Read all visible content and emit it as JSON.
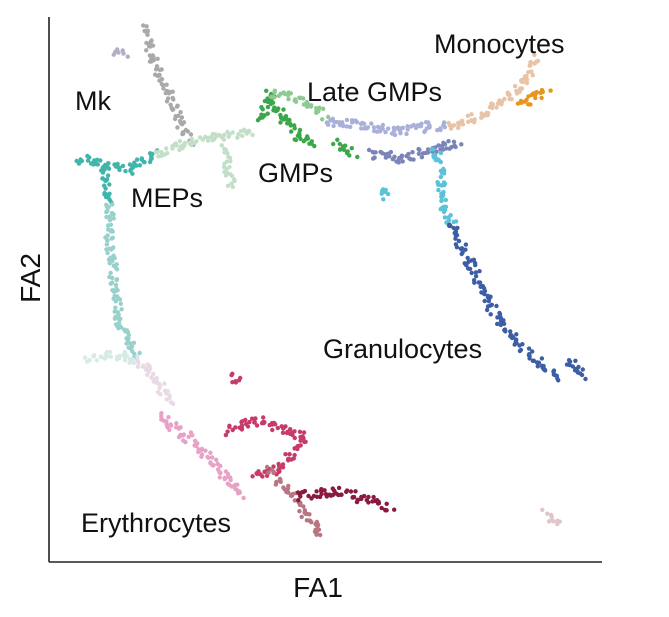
{
  "chart_data": {
    "type": "scatter",
    "title": "",
    "xlabel": "FA1",
    "ylabel": "FA2",
    "xlim": [
      0,
      100
    ],
    "ylim": [
      0,
      100
    ],
    "grid": false,
    "ticks": false,
    "legend": "none (clusters labeled directly on plot)",
    "point_style": "small filled dots, cells colored by cluster",
    "clusters": [
      {
        "label": "Mk",
        "color": "#b3aec8",
        "segments": [
          [
            [
              12,
              93.5
            ],
            [
              14,
              93.4
            ]
          ]
        ]
      },
      {
        "label": "MEPs",
        "color": "#41b5aa",
        "segments": [
          [
            [
              5,
              74
            ],
            [
              10,
              73
            ],
            [
              15,
              72
            ],
            [
              19.5,
              75
            ]
          ],
          [
            [
              10,
              73
            ],
            [
              11,
              66
            ]
          ]
        ]
      },
      {
        "label": "",
        "color": "#a9a9a9",
        "segments": [
          [
            [
              17,
              98
            ],
            [
              19,
              92
            ],
            [
              22,
              85
            ],
            [
              24,
              80
            ],
            [
              26,
              77
            ]
          ]
        ]
      },
      {
        "label": "",
        "color": "#c4dfc8",
        "segments": [
          [
            [
              19.5,
              75
            ],
            [
              24,
              76.5
            ],
            [
              30,
              78
            ],
            [
              37,
              79
            ]
          ],
          [
            [
              32,
              76
            ],
            [
              33,
              69
            ]
          ]
        ]
      },
      {
        "label": "GMPs",
        "color": "#3ca64a",
        "segments": [
          [
            [
              38,
              81
            ],
            [
              40,
              86
            ],
            [
              42,
              82
            ],
            [
              45,
              78
            ],
            [
              48,
              77
            ]
          ],
          [
            [
              52,
              77
            ],
            [
              55,
              75
            ]
          ]
        ]
      },
      {
        "label": "",
        "color": "#8fc993",
        "segments": [
          [
            [
              40,
              86
            ],
            [
              45,
              85
            ],
            [
              50,
              82
            ]
          ]
        ]
      },
      {
        "label": "Late GMPs",
        "color": "#a9b0d9",
        "segments": [
          [
            [
              50,
              81
            ],
            [
              57,
              80
            ],
            [
              63,
              79
            ],
            [
              69,
              80
            ],
            [
              72,
              80
            ]
          ]
        ]
      },
      {
        "label": "",
        "color": "#7a84b9",
        "segments": [
          [
            [
              58,
              75
            ],
            [
              64,
              74
            ],
            [
              70,
              76
            ],
            [
              74,
              77
            ]
          ]
        ]
      },
      {
        "label": "",
        "color": "#5bc2d8",
        "segments": [
          [
            [
              70,
              76
            ],
            [
              71,
              70
            ],
            [
              71,
              65
            ],
            [
              73,
              62
            ]
          ],
          [
            [
              60,
              68
            ],
            [
              61,
              67
            ]
          ]
        ]
      },
      {
        "label": "Granulocytes",
        "color": "#3d5ea5",
        "segments": [
          [
            [
              73,
              62
            ],
            [
              76,
              55
            ],
            [
              80,
              47
            ],
            [
              84,
              41
            ],
            [
              89,
              36
            ],
            [
              92,
              34
            ]
          ],
          [
            [
              94,
              37
            ],
            [
              97,
              34
            ]
          ]
        ]
      },
      {
        "label": "",
        "color": "#e8c3a6",
        "segments": [
          [
            [
              72,
              80
            ],
            [
              78,
              82
            ],
            [
              84,
              86
            ],
            [
              86,
              88
            ],
            [
              88,
              93
            ]
          ]
        ]
      },
      {
        "label": "Monocytes",
        "color": "#e6961e",
        "segments": [
          [
            [
              85,
              84
            ],
            [
              87,
              85
            ],
            [
              90,
              86
            ]
          ]
        ]
      },
      {
        "label": "",
        "color": "#98d1cc",
        "segments": [
          [
            [
              11,
              66
            ],
            [
              11,
              58
            ],
            [
              12,
              50
            ],
            [
              13,
              43
            ],
            [
              16,
              38
            ]
          ]
        ]
      },
      {
        "label": "",
        "color": "#d7ebe6",
        "segments": [
          [
            [
              7,
              37.5
            ],
            [
              13,
              38
            ],
            [
              16,
              37
            ]
          ]
        ]
      },
      {
        "label": "",
        "color": "#e9dbe6",
        "segments": [
          [
            [
              16,
              37
            ],
            [
              19,
              34
            ],
            [
              22,
              29
            ]
          ]
        ]
      },
      {
        "label": "Erythrocytes",
        "color": "#e8a1c7",
        "segments": [
          [
            [
              20,
              27
            ],
            [
              22,
              25
            ],
            [
              25,
              23
            ],
            [
              30,
              18
            ],
            [
              35,
              12
            ]
          ]
        ]
      },
      {
        "label": "",
        "color": "#c63c69",
        "segments": [
          [
            [
              32,
              24
            ],
            [
              38,
              26
            ],
            [
              43,
              24
            ],
            [
              46,
              23
            ],
            [
              42,
              17
            ],
            [
              37,
              16
            ]
          ],
          [
            [
              33,
              34
            ],
            [
              34,
              33
            ]
          ]
        ]
      },
      {
        "label": "",
        "color": "#b87582",
        "segments": [
          [
            [
              40,
              17
            ],
            [
              44,
              12
            ],
            [
              48,
              7
            ],
            [
              49,
              4.5
            ]
          ]
        ]
      },
      {
        "label": "",
        "color": "#8a1a3e",
        "segments": [
          [
            [
              45,
              12
            ],
            [
              52,
              13
            ],
            [
              59,
              11
            ],
            [
              62,
              10
            ]
          ]
        ]
      },
      {
        "label": "",
        "color": "#e0c6c6",
        "segments": [
          [
            [
              90,
              9
            ],
            [
              92,
              6.5
            ]
          ]
        ]
      }
    ]
  }
}
